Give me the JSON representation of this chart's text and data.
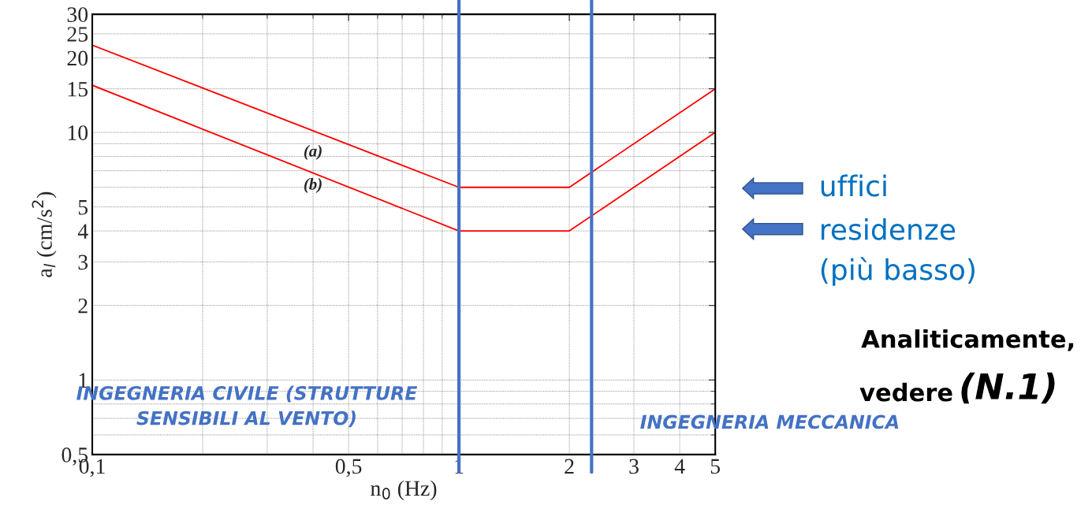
{
  "chart_data": {
    "type": "line",
    "xlabel": "n$_{0}$ (Hz)",
    "ylabel": "a$_{l}$ (cm/s$^{2}$)",
    "log": "xy",
    "xlim": [
      0.1,
      5
    ],
    "ylim": [
      0.5,
      30
    ],
    "xticks": [
      {
        "value": 0.1,
        "label": "0,1"
      },
      {
        "value": 0.5,
        "label": "0,5"
      },
      1,
      2,
      3,
      4,
      5
    ],
    "yticks": [
      {
        "value": 0.5,
        "label": "0,5"
      },
      1,
      2,
      3,
      4,
      5,
      10,
      15,
      20,
      25,
      30
    ],
    "grid": true,
    "marker": "none",
    "line_style": "solid",
    "series": [
      {
        "name": "(a)",
        "color": "#ff0000",
        "x": [
          0.1,
          1,
          2,
          5
        ],
        "values": [
          22.5,
          6,
          6,
          15
        ]
      },
      {
        "name": "(b)",
        "color": "#ff0000",
        "x": [
          0.1,
          1,
          2,
          5
        ],
        "values": [
          15.5,
          4,
          4,
          10
        ]
      }
    ],
    "ref_lines": [
      {
        "axis": "x",
        "value": 1,
        "color": "#4472c4"
      },
      {
        "axis": "x",
        "value": 2.3,
        "color": "#4472c4"
      }
    ],
    "annotations": [
      "INGEGNERIA CIVILE (STRUTTURE\nSENSIBILI AL VENTO)",
      "INGEGNERIA MECCANICA",
      "uffici",
      "residenze\n(più basso)",
      "Analiticamente,",
      "vedere",
      "(N.1)"
    ]
  }
}
